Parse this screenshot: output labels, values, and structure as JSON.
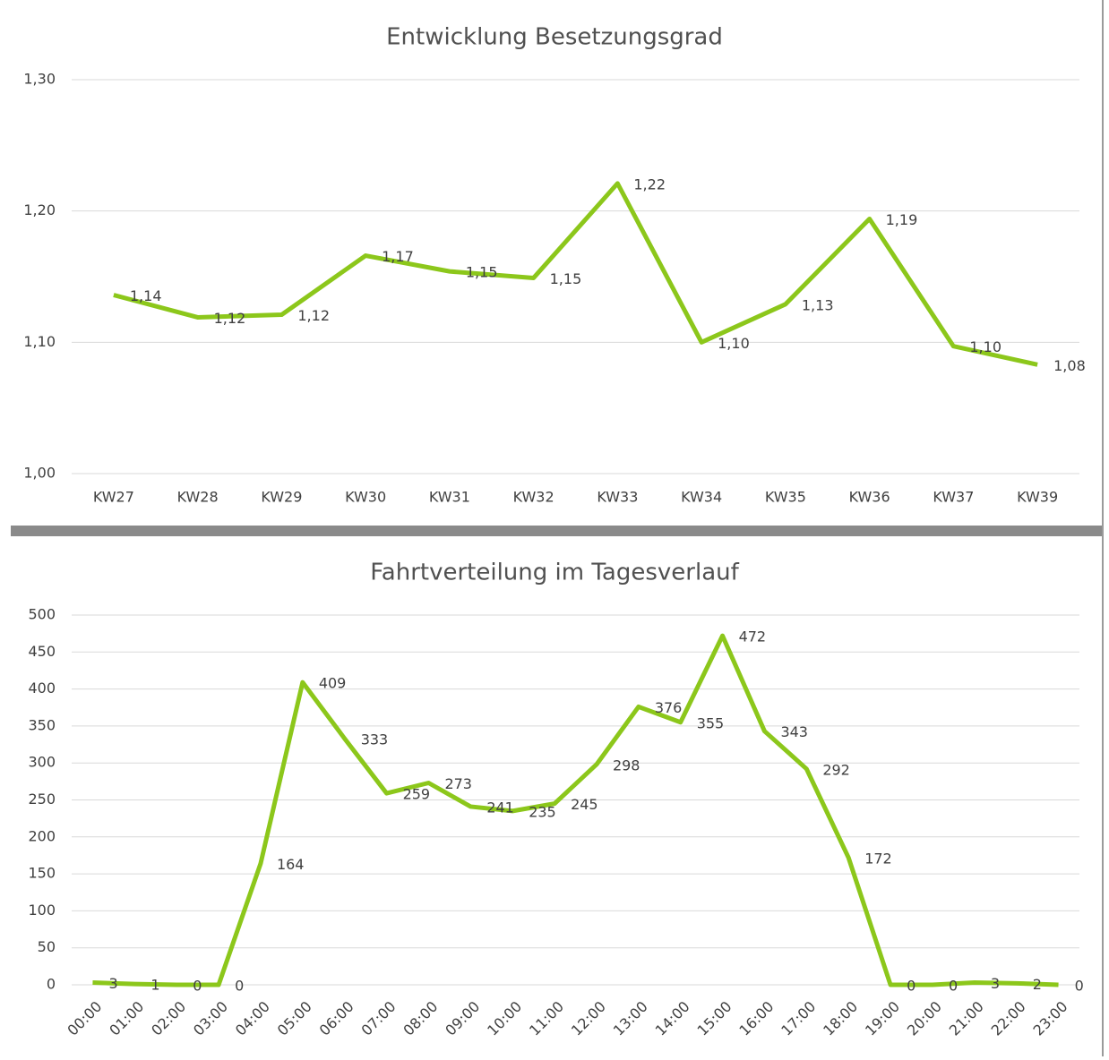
{
  "chart_data": [
    {
      "type": "line",
      "title": "Entwicklung Besetzungsgrad",
      "categories": [
        "KW27",
        "KW28",
        "KW29",
        "KW30",
        "KW31",
        "KW32",
        "KW33",
        "KW34",
        "KW35",
        "KW36",
        "KW37",
        "KW39"
      ],
      "series": [
        {
          "color": "#8cc71b",
          "values": [
            1.136,
            1.119,
            1.121,
            1.166,
            1.154,
            1.149,
            1.221,
            1.1,
            1.129,
            1.194,
            1.097,
            1.083
          ],
          "value_labels": [
            "1,14",
            "1,12",
            "1,12",
            "1,17",
            "1,15",
            "1,15",
            "1,22",
            "1,10",
            "1,13",
            "1,19",
            "1,10",
            "1,08"
          ]
        }
      ],
      "ylim": [
        1.0,
        1.3
      ],
      "yticks": [
        {
          "value": 1.0,
          "label": "1,00"
        },
        {
          "value": 1.1,
          "label": "1,10"
        },
        {
          "value": 1.2,
          "label": "1,20"
        },
        {
          "value": 1.3,
          "label": "1,30"
        }
      ],
      "grid": true
    },
    {
      "type": "line",
      "title": "Fahrtverteilung im Tagesverlauf",
      "categories": [
        "00:00",
        "01:00",
        "02:00",
        "03:00",
        "04:00",
        "05:00",
        "06:00",
        "07:00",
        "08:00",
        "09:00",
        "10:00",
        "11:00",
        "12:00",
        "13:00",
        "14:00",
        "15:00",
        "16:00",
        "17:00",
        "18:00",
        "19:00",
        "20:00",
        "21:00",
        "22:00",
        "23:00"
      ],
      "series": [
        {
          "color": "#8cc71b",
          "values": [
            3,
            1,
            0,
            0,
            164,
            409,
            333,
            259,
            273,
            241,
            235,
            245,
            298,
            376,
            355,
            472,
            343,
            292,
            172,
            0,
            0,
            3,
            2,
            0
          ]
        }
      ],
      "ylim": [
        0,
        500
      ],
      "yticks": [
        0,
        50,
        100,
        150,
        200,
        250,
        300,
        350,
        400,
        450,
        500
      ],
      "grid": true
    }
  ]
}
